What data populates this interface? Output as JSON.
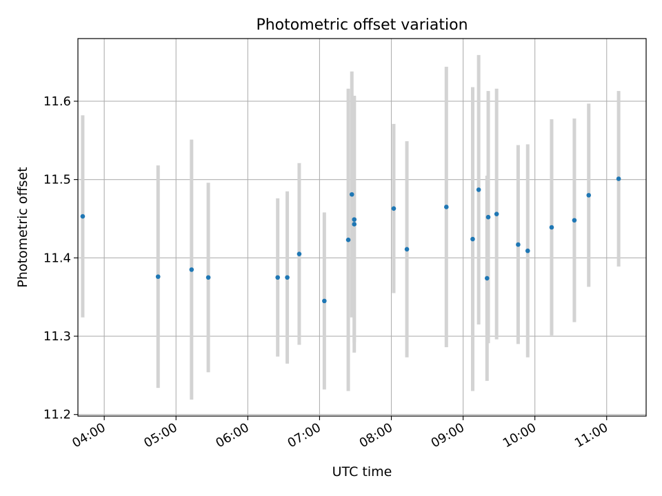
{
  "chart_data": {
    "type": "scatter",
    "title": "Photometric offset variation",
    "xlabel": "UTC time",
    "ylabel": "Photometric offset",
    "x_ticks": [
      "04:00",
      "05:00",
      "06:00",
      "07:00",
      "08:00",
      "09:00",
      "10:00",
      "11:00"
    ],
    "y_ticks": [
      "11.2",
      "11.3",
      "11.4",
      "11.5",
      "11.6"
    ],
    "xlim": [
      "03:38",
      "11:33"
    ],
    "ylim": [
      11.198,
      11.68
    ],
    "grid": true,
    "marker_color": "#1f77b4",
    "errorbar_color": "#d3d3d3",
    "points": [
      {
        "time": "03:42",
        "y": 11.453,
        "err": 0.129
      },
      {
        "time": "04:45",
        "y": 11.376,
        "err": 0.142
      },
      {
        "time": "05:13",
        "y": 11.385,
        "err": 0.166
      },
      {
        "time": "05:27",
        "y": 11.375,
        "err": 0.121
      },
      {
        "time": "06:25",
        "y": 11.375,
        "err": 0.101
      },
      {
        "time": "06:33",
        "y": 11.375,
        "err": 0.11
      },
      {
        "time": "06:43",
        "y": 11.405,
        "err": 0.116
      },
      {
        "time": "07:04",
        "y": 11.345,
        "err": 0.113
      },
      {
        "time": "07:24",
        "y": 11.423,
        "err": 0.193
      },
      {
        "time": "07:27",
        "y": 11.481,
        "err": 0.157
      },
      {
        "time": "07:29",
        "y": 11.449,
        "err": 0.157
      },
      {
        "time": "07:29",
        "y": 11.443,
        "err": 0.164
      },
      {
        "time": "08:02",
        "y": 11.463,
        "err": 0.108
      },
      {
        "time": "08:13",
        "y": 11.411,
        "err": 0.138
      },
      {
        "time": "08:46",
        "y": 11.465,
        "err": 0.179
      },
      {
        "time": "09:08",
        "y": 11.424,
        "err": 0.194
      },
      {
        "time": "09:13",
        "y": 11.487,
        "err": 0.172
      },
      {
        "time": "09:20",
        "y": 11.374,
        "err": 0.131
      },
      {
        "time": "09:21",
        "y": 11.452,
        "err": 0.161
      },
      {
        "time": "09:28",
        "y": 11.456,
        "err": 0.16
      },
      {
        "time": "09:46",
        "y": 11.417,
        "err": 0.127
      },
      {
        "time": "09:54",
        "y": 11.409,
        "err": 0.136
      },
      {
        "time": "10:14",
        "y": 11.439,
        "err": 0.138
      },
      {
        "time": "10:33",
        "y": 11.448,
        "err": 0.13
      },
      {
        "time": "10:45",
        "y": 11.48,
        "err": 0.117
      },
      {
        "time": "11:10",
        "y": 11.501,
        "err": 0.112
      }
    ]
  }
}
